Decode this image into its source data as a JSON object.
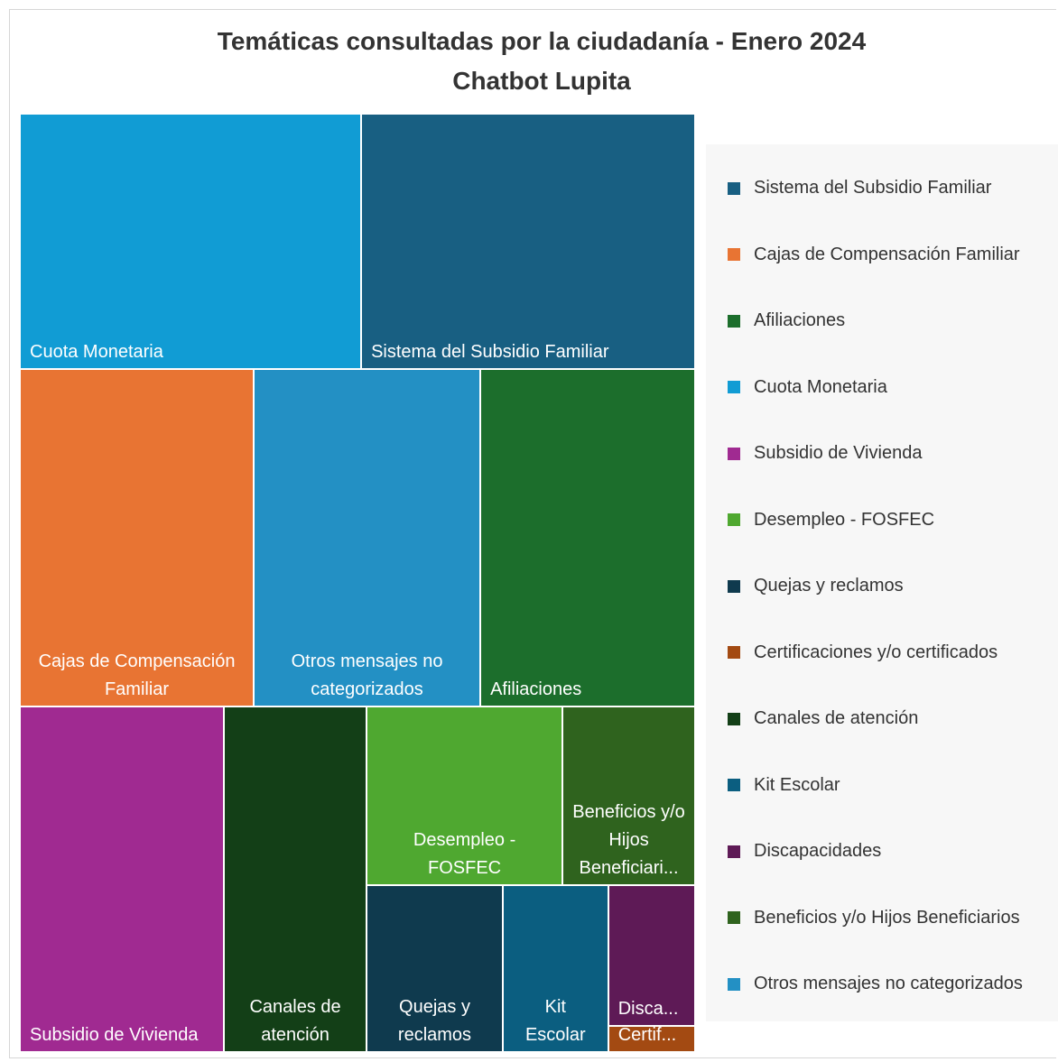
{
  "chart_data": {
    "type": "treemap",
    "title": "Temáticas consultadas por la ciudadanía - Enero 2024",
    "subtitle": "Chatbot Lupita",
    "categories": [
      "Cuota Monetaria",
      "Sistema del Subsidio Familiar",
      "Cajas de Compensación Familiar",
      "Otros mensajes no categorizados",
      "Afiliaciones",
      "Subsidio de Vivienda",
      "Canales de atención",
      "Desempleo - FOSFEC",
      "Beneficios y/o Hijos Beneficiarios",
      "Quejas y reclamos",
      "Kit Escolar",
      "Discapacidades",
      "Certificaciones y/o certificados"
    ],
    "tile_labels": [
      "Cuota Monetaria",
      "Sistema del Subsidio Familiar",
      "Cajas de Compensación Familiar",
      "Otros mensajes no categorizados",
      "Afiliaciones",
      "Subsidio de Vivienda",
      "Canales de atención",
      "Desempleo - FOSFEC",
      "Beneficios y/o Hijos Beneficiari...",
      "Quejas y reclamos",
      "Kit Escolar",
      "Disca...",
      "Certif..."
    ],
    "values": [
      1070,
      1047,
      969,
      939,
      890,
      866,
      605,
      430,
      291,
      279,
      216,
      150,
      28
    ],
    "colors": [
      "#119cd4",
      "#185f82",
      "#e87433",
      "#2390c4",
      "#1c6e2c",
      "#a02a91",
      "#133f17",
      "#4fa830",
      "#2f631e",
      "#0f3a4e",
      "#0b5e80",
      "#5e1a56",
      "#a34a12"
    ],
    "legend": [
      "Sistema del Subsidio Familiar",
      "Cajas de Compensación Familiar",
      "Afiliaciones",
      "Cuota Monetaria",
      "Subsidio de Vivienda",
      "Desempleo - FOSFEC",
      "Quejas y reclamos",
      "Certificaciones y/o certificados",
      "Canales de atención",
      "Kit Escolar",
      "Discapacidades",
      "Beneficios y/o Hijos Beneficiarios",
      "Otros mensajes no categorizados"
    ]
  }
}
